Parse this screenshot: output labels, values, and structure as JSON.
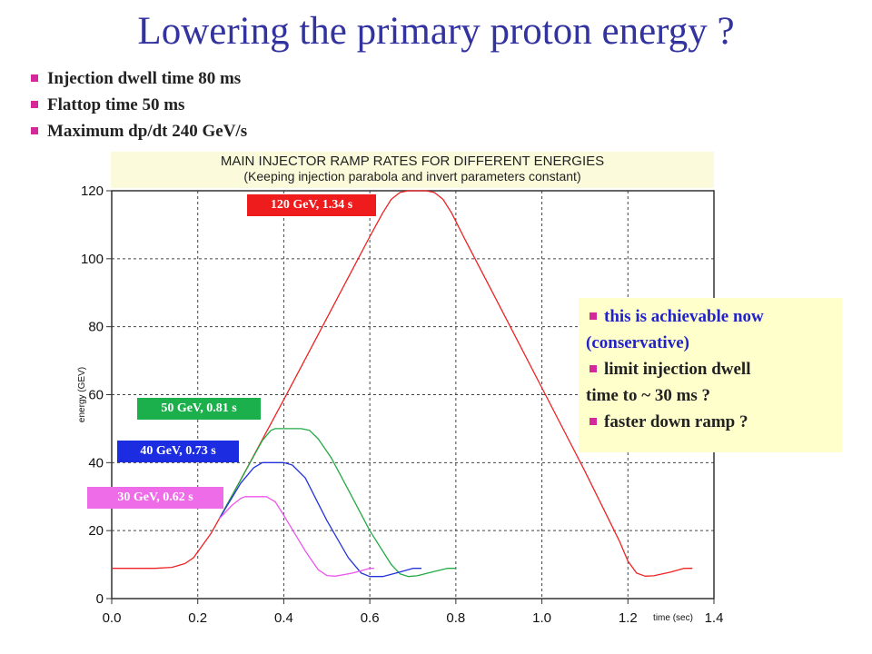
{
  "slide": {
    "title": "Lowering the primary proton energy ?",
    "bullets": [
      "Injection dwell time 80 ms",
      "Flattop time 50 ms",
      "Maximum dp/dt 240 GeV/s"
    ],
    "note_box": [
      {
        "line1": "this is achievable now",
        "line2": "(conservative)"
      },
      {
        "line1": "limit injection dwell",
        "line2": "time to ~ 30 ms ?"
      },
      {
        "line1": "faster down ramp ?",
        "line2": ""
      }
    ],
    "labels": [
      {
        "text": "120 GeV, 1.34 s",
        "color": "#ee1c1c"
      },
      {
        "text": "50 GeV, 0.81 s",
        "color": "#1cb04c"
      },
      {
        "text": "40 GeV, 0.73 s",
        "color": "#1c2ce0"
      },
      {
        "text": "30 GeV, 0.62 s",
        "color": "#ee6ce8"
      }
    ],
    "bullet_color": "#d3299a",
    "title_color": "#3333a0"
  },
  "chart_data": {
    "type": "line",
    "title": "MAIN INJECTOR RAMP RATES FOR DIFFERENT ENERGIES",
    "subtitle": "(Keeping injection parabola and invert parameters constant)",
    "xlabel": "time (sec)",
    "ylabel": "energy (GEV)",
    "xlim": [
      0.0,
      1.4
    ],
    "ylim": [
      0,
      120
    ],
    "xticks": [
      "0.0",
      "0.2",
      "0.4",
      "0.6",
      "0.8",
      "1.0",
      "1.2",
      "1.4"
    ],
    "yticks": [
      "0",
      "20",
      "40",
      "60",
      "80",
      "100",
      "120"
    ],
    "grid": true,
    "series": [
      {
        "color": "#ee2222",
        "points": [
          [
            0.0,
            8.9
          ],
          [
            0.1,
            8.9
          ],
          [
            0.14,
            9.2
          ],
          [
            0.17,
            10.3
          ],
          [
            0.19,
            12.0
          ],
          [
            0.21,
            15.5
          ],
          [
            0.23,
            19.0
          ],
          [
            0.25,
            23.5
          ],
          [
            0.3,
            35
          ],
          [
            0.4,
            58.5
          ],
          [
            0.5,
            82.5
          ],
          [
            0.6,
            106.5
          ],
          [
            0.63,
            113.5
          ],
          [
            0.65,
            117.5
          ],
          [
            0.67,
            119.5
          ],
          [
            0.69,
            120
          ],
          [
            0.73,
            120
          ],
          [
            0.75,
            119.5
          ],
          [
            0.77,
            117.5
          ],
          [
            0.79,
            113.5
          ],
          [
            0.82,
            106
          ],
          [
            0.9,
            86.5
          ],
          [
            1.0,
            62
          ],
          [
            1.1,
            37.5
          ],
          [
            1.18,
            17
          ],
          [
            1.2,
            11
          ],
          [
            1.22,
            7.5
          ],
          [
            1.24,
            6.6
          ],
          [
            1.26,
            6.7
          ],
          [
            1.3,
            7.8
          ],
          [
            1.33,
            8.9
          ],
          [
            1.35,
            8.9
          ]
        ]
      },
      {
        "color": "#22aa44",
        "points": [
          [
            0.25,
            23.5
          ],
          [
            0.3,
            35
          ],
          [
            0.35,
            46.5
          ],
          [
            0.37,
            49.5
          ],
          [
            0.38,
            50
          ],
          [
            0.44,
            50
          ],
          [
            0.46,
            49.5
          ],
          [
            0.48,
            47
          ],
          [
            0.51,
            41.5
          ],
          [
            0.55,
            32
          ],
          [
            0.6,
            20
          ],
          [
            0.65,
            10
          ],
          [
            0.67,
            7.3
          ],
          [
            0.69,
            6.5
          ],
          [
            0.71,
            6.7
          ],
          [
            0.75,
            8
          ],
          [
            0.78,
            8.9
          ],
          [
            0.8,
            8.9
          ]
        ]
      },
      {
        "color": "#2233dd",
        "points": [
          [
            0.25,
            23.5
          ],
          [
            0.3,
            34
          ],
          [
            0.33,
            38.5
          ],
          [
            0.35,
            40
          ],
          [
            0.4,
            40
          ],
          [
            0.42,
            39.3
          ],
          [
            0.45,
            35.5
          ],
          [
            0.5,
            23
          ],
          [
            0.55,
            12
          ],
          [
            0.58,
            7.5
          ],
          [
            0.6,
            6.5
          ],
          [
            0.63,
            6.5
          ],
          [
            0.67,
            7.8
          ],
          [
            0.7,
            8.9
          ],
          [
            0.72,
            8.9
          ]
        ]
      },
      {
        "color": "#ee55ee",
        "points": [
          [
            0.25,
            23.5
          ],
          [
            0.28,
            27.5
          ],
          [
            0.3,
            29.5
          ],
          [
            0.31,
            30
          ],
          [
            0.36,
            30
          ],
          [
            0.38,
            28.5
          ],
          [
            0.4,
            24.5
          ],
          [
            0.45,
            14
          ],
          [
            0.48,
            8.5
          ],
          [
            0.5,
            6.8
          ],
          [
            0.52,
            6.6
          ],
          [
            0.56,
            7.5
          ],
          [
            0.6,
            8.9
          ],
          [
            0.61,
            8.9
          ]
        ]
      }
    ]
  }
}
